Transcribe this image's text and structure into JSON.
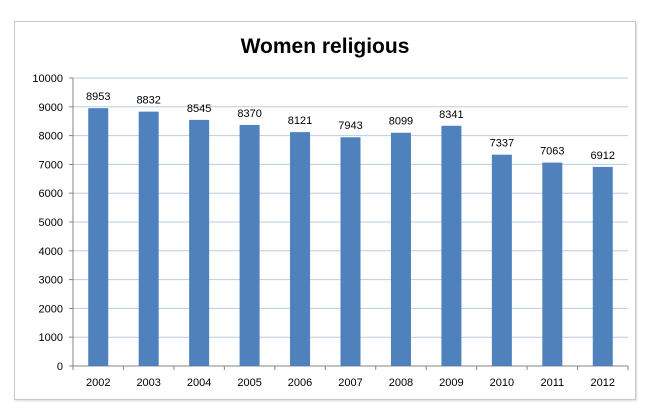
{
  "chart_data": {
    "type": "bar",
    "title": "Women religious",
    "xlabel": "",
    "ylabel": "",
    "categories": [
      "2002",
      "2003",
      "2004",
      "2005",
      "2006",
      "2007",
      "2008",
      "2009",
      "2010",
      "2011",
      "2012"
    ],
    "values": [
      8953,
      8832,
      8545,
      8370,
      8121,
      7943,
      8099,
      8341,
      7337,
      7063,
      6912
    ],
    "ylim": [
      0,
      10000
    ],
    "yticks": [
      0,
      1000,
      2000,
      3000,
      4000,
      5000,
      6000,
      7000,
      8000,
      9000,
      10000
    ],
    "grid": true,
    "legend": null,
    "data_labels": true,
    "colors": {
      "bar": "#4f81bd",
      "grid": "#b9cde5",
      "axis": "#868686"
    }
  }
}
